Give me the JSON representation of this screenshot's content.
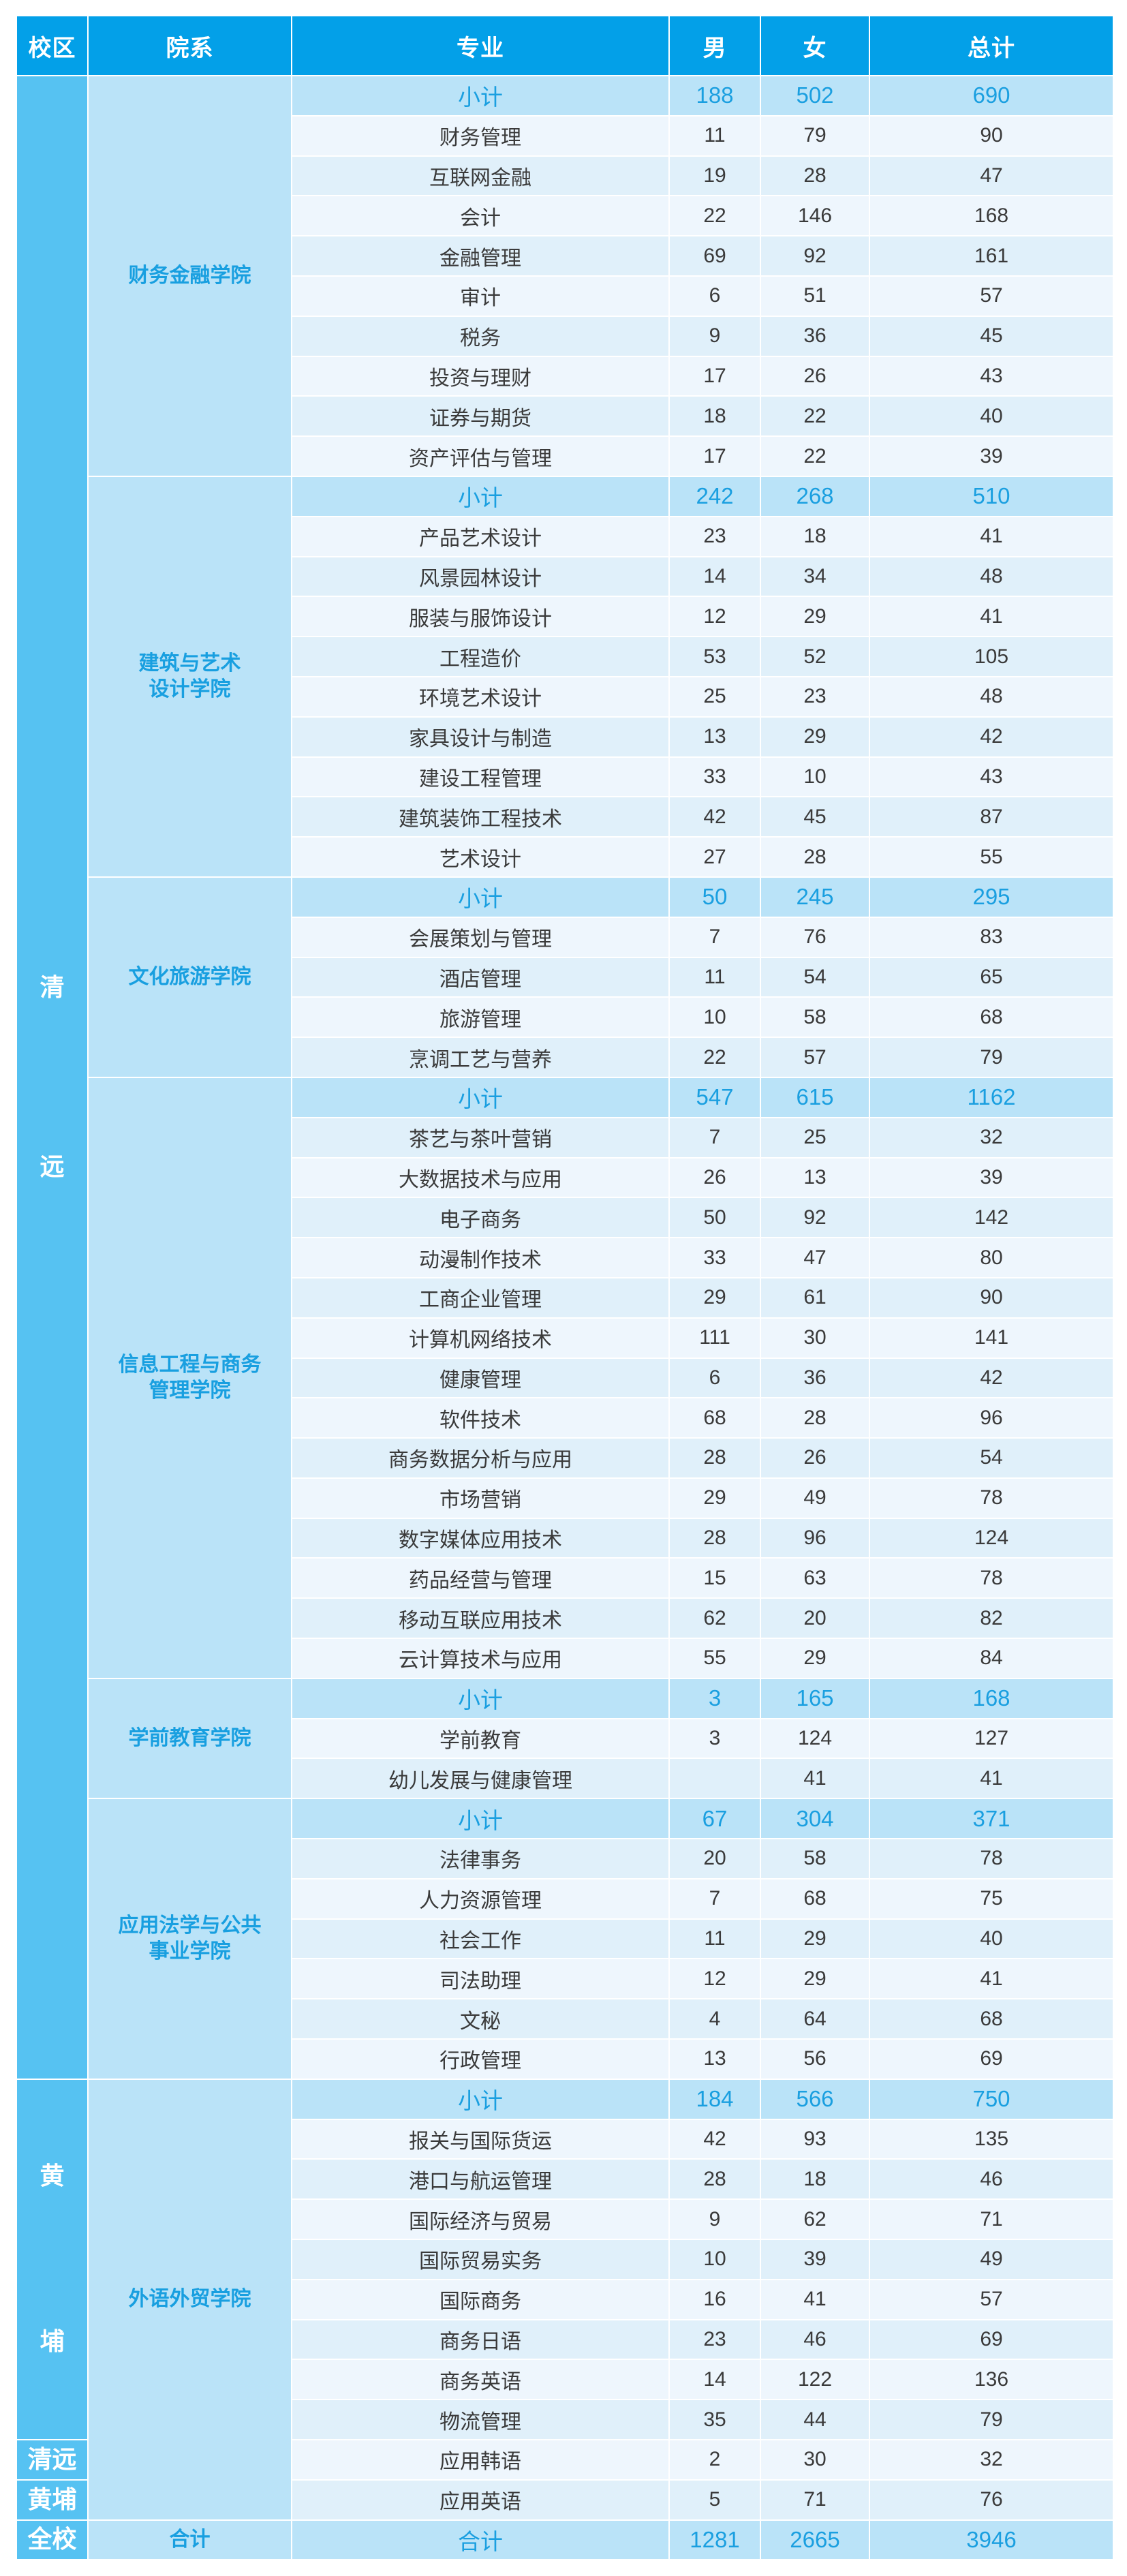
{
  "header": {
    "campus": "校区",
    "department": "院系",
    "major": "专业",
    "male": "男",
    "female": "女",
    "total": "总计"
  },
  "colors": {
    "header_bg": "#03A0E8",
    "campus_bg": "#56C2F2",
    "dept_bg": "#BAE3F8",
    "subtotal_bg": "#BAE3F8",
    "subtotal_text": "#1A9FE0",
    "row_light": "#EEF6FD",
    "row_dark": "#E0F0FA"
  },
  "campuses": {
    "qingyuan_1": "清",
    "qingyuan_2": "远",
    "huangpu_1": "黄",
    "huangpu_2": "埔",
    "qingyuan": "清远",
    "huangpu": "黄埔",
    "whole": "全校"
  },
  "groups": [
    {
      "dept": "财务金融学院",
      "subtotal": {
        "label": "小计",
        "male": "188",
        "female": "502",
        "total": "690"
      },
      "rows": [
        {
          "major": "财务管理",
          "male": "11",
          "female": "79",
          "total": "90"
        },
        {
          "major": "互联网金融",
          "male": "19",
          "female": "28",
          "total": "47"
        },
        {
          "major": "会计",
          "male": "22",
          "female": "146",
          "total": "168"
        },
        {
          "major": "金融管理",
          "male": "69",
          "female": "92",
          "total": "161"
        },
        {
          "major": "审计",
          "male": "6",
          "female": "51",
          "total": "57"
        },
        {
          "major": "税务",
          "male": "9",
          "female": "36",
          "total": "45"
        },
        {
          "major": "投资与理财",
          "male": "17",
          "female": "26",
          "total": "43"
        },
        {
          "major": "证券与期货",
          "male": "18",
          "female": "22",
          "total": "40"
        },
        {
          "major": "资产评估与管理",
          "male": "17",
          "female": "22",
          "total": "39"
        }
      ]
    },
    {
      "dept": "建筑与艺术设计学院",
      "subtotal": {
        "label": "小计",
        "male": "242",
        "female": "268",
        "total": "510"
      },
      "rows": [
        {
          "major": "产品艺术设计",
          "male": "23",
          "female": "18",
          "total": "41"
        },
        {
          "major": "风景园林设计",
          "male": "14",
          "female": "34",
          "total": "48"
        },
        {
          "major": "服装与服饰设计",
          "male": "12",
          "female": "29",
          "total": "41"
        },
        {
          "major": "工程造价",
          "male": "53",
          "female": "52",
          "total": "105"
        },
        {
          "major": "环境艺术设计",
          "male": "25",
          "female": "23",
          "total": "48"
        },
        {
          "major": "家具设计与制造",
          "male": "13",
          "female": "29",
          "total": "42"
        },
        {
          "major": "建设工程管理",
          "male": "33",
          "female": "10",
          "total": "43"
        },
        {
          "major": "建筑装饰工程技术",
          "male": "42",
          "female": "45",
          "total": "87"
        },
        {
          "major": "艺术设计",
          "male": "27",
          "female": "28",
          "total": "55"
        }
      ]
    },
    {
      "dept": "文化旅游学院",
      "subtotal": {
        "label": "小计",
        "male": "50",
        "female": "245",
        "total": "295"
      },
      "rows": [
        {
          "major": "会展策划与管理",
          "male": "7",
          "female": "76",
          "total": "83"
        },
        {
          "major": "酒店管理",
          "male": "11",
          "female": "54",
          "total": "65"
        },
        {
          "major": "旅游管理",
          "male": "10",
          "female": "58",
          "total": "68"
        },
        {
          "major": "烹调工艺与营养",
          "male": "22",
          "female": "57",
          "total": "79"
        }
      ]
    },
    {
      "dept": "信息工程与商务管理学院",
      "subtotal": {
        "label": "小计",
        "male": "547",
        "female": "615",
        "total": "1162"
      },
      "rows": [
        {
          "major": "茶艺与茶叶营销",
          "male": "7",
          "female": "25",
          "total": "32"
        },
        {
          "major": "大数据技术与应用",
          "male": "26",
          "female": "13",
          "total": "39"
        },
        {
          "major": "电子商务",
          "male": "50",
          "female": "92",
          "total": "142"
        },
        {
          "major": "动漫制作技术",
          "male": "33",
          "female": "47",
          "total": "80"
        },
        {
          "major": "工商企业管理",
          "male": "29",
          "female": "61",
          "total": "90"
        },
        {
          "major": "计算机网络技术",
          "male": "111",
          "female": "30",
          "total": "141"
        },
        {
          "major": "健康管理",
          "male": "6",
          "female": "36",
          "total": "42"
        },
        {
          "major": "软件技术",
          "male": "68",
          "female": "28",
          "total": "96"
        },
        {
          "major": "商务数据分析与应用",
          "male": "28",
          "female": "26",
          "total": "54"
        },
        {
          "major": "市场营销",
          "male": "29",
          "female": "49",
          "total": "78"
        },
        {
          "major": "数字媒体应用技术",
          "male": "28",
          "female": "96",
          "total": "124"
        },
        {
          "major": "药品经营与管理",
          "male": "15",
          "female": "63",
          "total": "78"
        },
        {
          "major": "移动互联应用技术",
          "male": "62",
          "female": "20",
          "total": "82"
        },
        {
          "major": "云计算技术与应用",
          "male": "55",
          "female": "29",
          "total": "84"
        }
      ]
    },
    {
      "dept": "学前教育学院",
      "subtotal": {
        "label": "小计",
        "male": "3",
        "female": "165",
        "total": "168"
      },
      "rows": [
        {
          "major": "学前教育",
          "male": "3",
          "female": "124",
          "total": "127"
        },
        {
          "major": "幼儿发展与健康管理",
          "male": "",
          "female": "41",
          "total": "41"
        }
      ]
    },
    {
      "dept": "应用法学与公共事业学院",
      "subtotal": {
        "label": "小计",
        "male": "67",
        "female": "304",
        "total": "371"
      },
      "rows": [
        {
          "major": "法律事务",
          "male": "20",
          "female": "58",
          "total": "78"
        },
        {
          "major": "人力资源管理",
          "male": "7",
          "female": "68",
          "total": "75"
        },
        {
          "major": "社会工作",
          "male": "11",
          "female": "29",
          "total": "40"
        },
        {
          "major": "司法助理",
          "male": "12",
          "female": "29",
          "total": "41"
        },
        {
          "major": "文秘",
          "male": "4",
          "female": "64",
          "total": "68"
        },
        {
          "major": "行政管理",
          "male": "13",
          "female": "56",
          "total": "69"
        }
      ]
    },
    {
      "dept": "外语外贸学院",
      "subtotal": {
        "label": "小计",
        "male": "184",
        "female": "566",
        "total": "750"
      },
      "rows": [
        {
          "major": "报关与国际货运",
          "male": "42",
          "female": "93",
          "total": "135"
        },
        {
          "major": "港口与航运管理",
          "male": "28",
          "female": "18",
          "total": "46"
        },
        {
          "major": "国际经济与贸易",
          "male": "9",
          "female": "62",
          "total": "71"
        },
        {
          "major": "国际贸易实务",
          "male": "10",
          "female": "39",
          "total": "49"
        },
        {
          "major": "国际商务",
          "male": "16",
          "female": "41",
          "total": "57"
        },
        {
          "major": "商务日语",
          "male": "23",
          "female": "46",
          "total": "69"
        },
        {
          "major": "商务英语",
          "male": "14",
          "female": "122",
          "total": "136"
        },
        {
          "major": "物流管理",
          "male": "35",
          "female": "44",
          "total": "79"
        },
        {
          "major": "应用韩语",
          "male": "2",
          "female": "30",
          "total": "32"
        },
        {
          "major": "应用英语",
          "male": "5",
          "female": "71",
          "total": "76"
        }
      ]
    }
  ],
  "grand_total": {
    "dept": "合计",
    "label": "合计",
    "male": "1281",
    "female": "2665",
    "total": "3946"
  },
  "dept_lines": {
    "g1": [
      "建筑与艺术",
      "设计学院"
    ],
    "g3": [
      "信息工程与商务",
      "管理学院"
    ],
    "g5": [
      "应用法学与公共",
      "事业学院"
    ]
  }
}
